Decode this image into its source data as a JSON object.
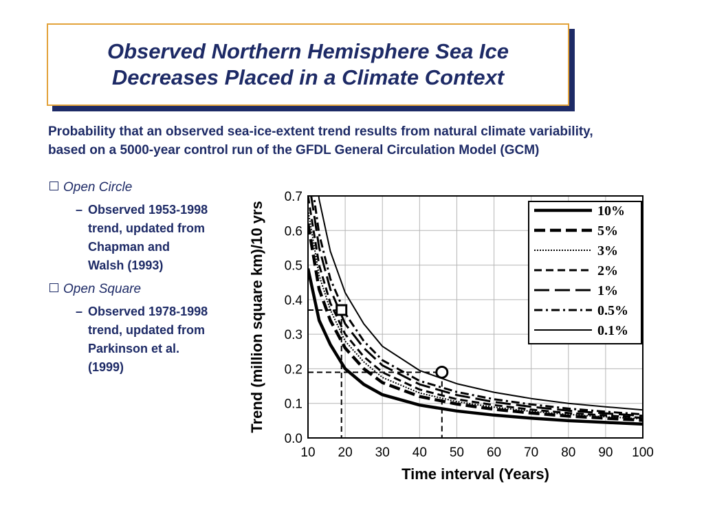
{
  "slide": {
    "title_line1": "Observed Northern Hemisphere Sea Ice",
    "title_line2": "Decreases Placed in a Climate Context",
    "intro": "Probability that an observed sea-ice-extent trend results from natural climate variability, based on a 5000-year control run of the GFDL General Circulation Model (GCM)",
    "bullets": [
      {
        "label": "Open Circle",
        "sub": "Observed 1953-1998\ntrend, updated from\nChapman and\nWalsh (1993)"
      },
      {
        "label": "Open Square",
        "sub": "Observed 1978-1998\ntrend, updated from\nParkinson et al.\n(1999)"
      }
    ],
    "colors": {
      "title": "#1d2a66",
      "title_border": "#e2a23a",
      "title_shadow": "#1d2a66",
      "text": "#1d2a66"
    }
  },
  "chart_data": {
    "type": "line",
    "xlabel": "Time interval (Years)",
    "ylabel": "Trend (million square km)/10 yrs",
    "xlim": [
      10,
      100
    ],
    "ylim": [
      0.0,
      0.7
    ],
    "xticks": [
      "10",
      "20",
      "30",
      "40",
      "50",
      "60",
      "70",
      "80",
      "90",
      "100"
    ],
    "yticks": [
      "0.0",
      "0.1",
      "0.2",
      "0.3",
      "0.4",
      "0.5",
      "0.6",
      "0.7"
    ],
    "grid": true,
    "legend_position": "top-right",
    "series": [
      {
        "name": "10%",
        "style": "solid-thick",
        "x": [
          10,
          13,
          16,
          20,
          25,
          30,
          40,
          50,
          60,
          70,
          80,
          90,
          100
        ],
        "y": [
          0.49,
          0.34,
          0.27,
          0.2,
          0.155,
          0.125,
          0.095,
          0.078,
          0.066,
          0.057,
          0.05,
          0.045,
          0.04
        ]
      },
      {
        "name": "5%",
        "style": "dash-thick",
        "x": [
          10,
          13,
          16,
          20,
          25,
          30,
          40,
          50,
          60,
          70,
          80,
          90,
          100
        ],
        "y": [
          0.62,
          0.43,
          0.34,
          0.26,
          0.2,
          0.16,
          0.12,
          0.098,
          0.083,
          0.072,
          0.063,
          0.057,
          0.051
        ]
      },
      {
        "name": "3%",
        "style": "dotted",
        "x": [
          10,
          13,
          16,
          20,
          25,
          30,
          40,
          50,
          60,
          70,
          80,
          90,
          100
        ],
        "y": [
          0.66,
          0.47,
          0.37,
          0.28,
          0.22,
          0.175,
          0.13,
          0.105,
          0.089,
          0.077,
          0.068,
          0.061,
          0.055
        ]
      },
      {
        "name": "2%",
        "style": "dash",
        "x": [
          10,
          13,
          16,
          20,
          25,
          30,
          40,
          50,
          60,
          70,
          80,
          90,
          100
        ],
        "y": [
          0.7,
          0.5,
          0.39,
          0.3,
          0.235,
          0.19,
          0.14,
          0.112,
          0.095,
          0.082,
          0.072,
          0.065,
          0.058
        ]
      },
      {
        "name": "1%",
        "style": "long-dash",
        "x": [
          10,
          13,
          16,
          20,
          25,
          30,
          40,
          50,
          60,
          70,
          80,
          90,
          100
        ],
        "y": [
          0.76,
          0.55,
          0.43,
          0.33,
          0.26,
          0.21,
          0.155,
          0.124,
          0.104,
          0.09,
          0.079,
          0.071,
          0.064
        ]
      },
      {
        "name": "0.5%",
        "style": "dash-dot",
        "x": [
          10,
          13,
          16,
          20,
          25,
          30,
          40,
          50,
          60,
          70,
          80,
          90,
          100
        ],
        "y": [
          0.82,
          0.59,
          0.46,
          0.36,
          0.28,
          0.225,
          0.165,
          0.133,
          0.112,
          0.097,
          0.085,
          0.076,
          0.068
        ]
      },
      {
        "name": "0.1%",
        "style": "solid",
        "x": [
          10,
          13,
          16,
          20,
          25,
          30,
          40,
          50,
          60,
          70,
          80,
          90,
          100
        ],
        "y": [
          0.95,
          0.69,
          0.54,
          0.42,
          0.33,
          0.265,
          0.195,
          0.157,
          0.132,
          0.114,
          0.1,
          0.09,
          0.081
        ]
      }
    ],
    "markers": [
      {
        "name": "Open Square",
        "shape": "square",
        "x": 19,
        "y": 0.37
      },
      {
        "name": "Open Circle",
        "shape": "circle",
        "x": 46,
        "y": 0.19
      }
    ]
  }
}
